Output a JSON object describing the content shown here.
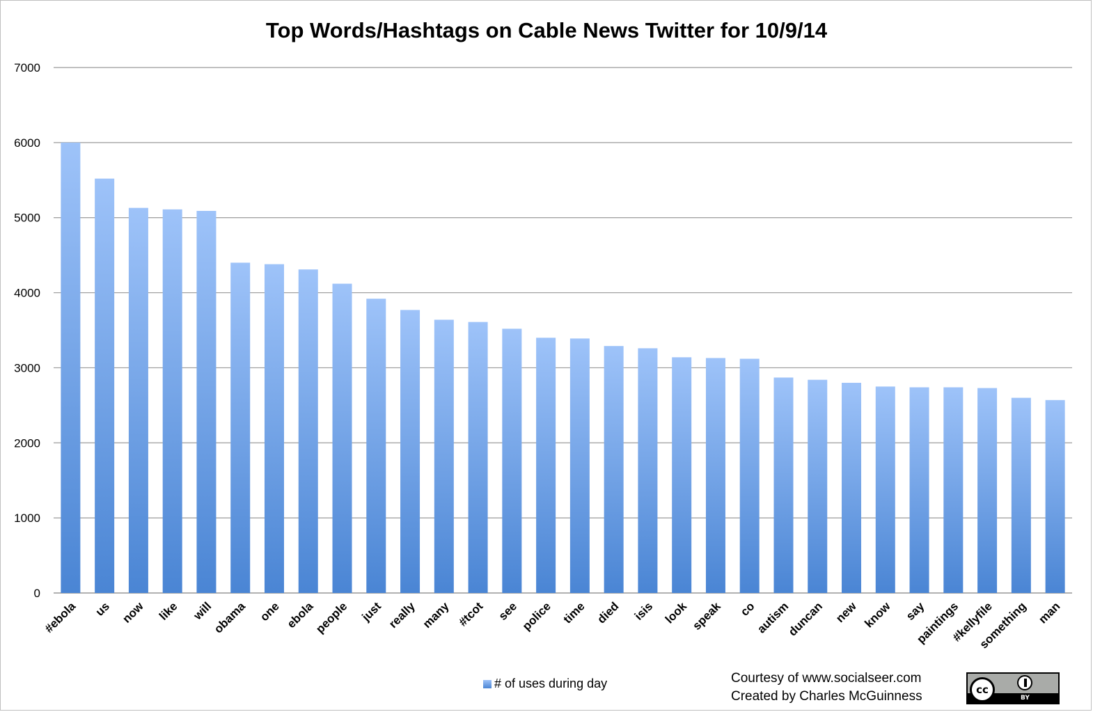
{
  "chart_data": {
    "type": "bar",
    "title": "Top Words/Hashtags on Cable News Twitter for 10/9/14",
    "xlabel": "",
    "ylabel": "",
    "ylim": [
      0,
      7000
    ],
    "yticks": [
      "0",
      "1000",
      "2000",
      "3000",
      "4000",
      "5000",
      "6000",
      "7000"
    ],
    "grid": true,
    "legend_position": "bottom",
    "categories": [
      "#ebola",
      "us",
      "now",
      "like",
      "will",
      "obama",
      "one",
      "ebola",
      "people",
      "just",
      "really",
      "many",
      "#tcot",
      "see",
      "police",
      "time",
      "died",
      "isis",
      "look",
      "speak",
      "co",
      "autism",
      "duncan",
      "new",
      "know",
      "say",
      "paintings",
      "#kellyfile",
      "something",
      "man"
    ],
    "series": [
      {
        "name": "# of uses during day",
        "color_top": "#9ec3f9",
        "color_bottom": "#4a85d4",
        "values": [
          6000,
          5520,
          5130,
          5110,
          5090,
          4400,
          4380,
          4310,
          4120,
          3920,
          3770,
          3640,
          3610,
          3520,
          3400,
          3390,
          3290,
          3260,
          3140,
          3130,
          3120,
          2870,
          2840,
          2800,
          2750,
          2740,
          2740,
          2730,
          2600,
          2570
        ]
      }
    ]
  },
  "credits": {
    "line1": "Courtesy of www.socialseer.com",
    "line2": "Created by Charles McGuinness"
  },
  "license_badge": {
    "cc_text": "cc",
    "by_text": "BY"
  }
}
